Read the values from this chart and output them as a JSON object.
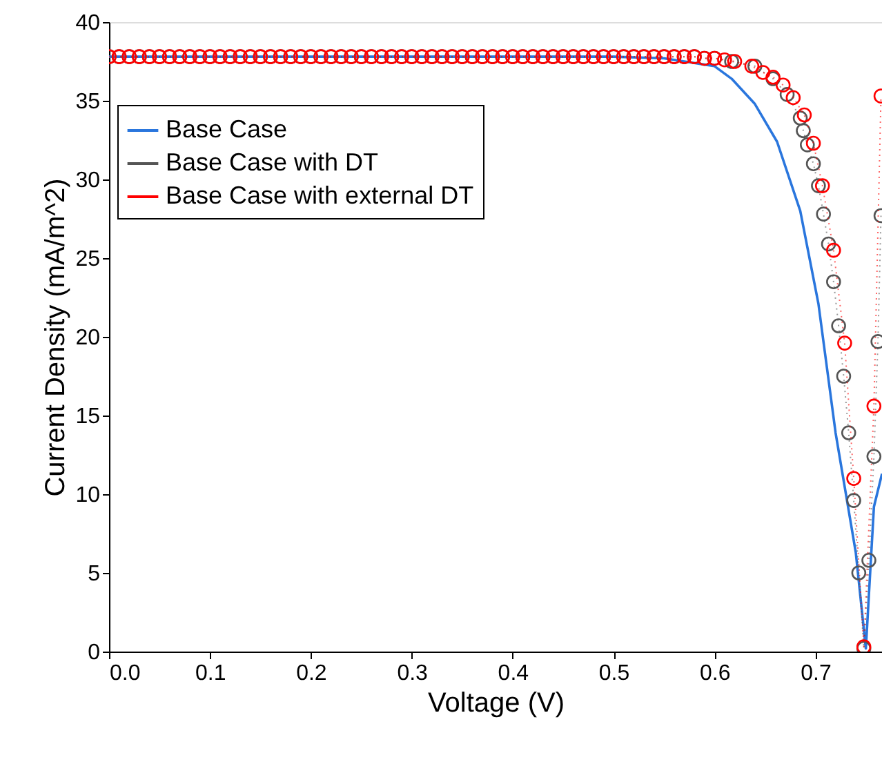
{
  "chart_data": {
    "type": "line",
    "xlabel": "Voltage (V)",
    "ylabel": "Current Density (mA/m^2)",
    "xlim": [
      0,
      0.766
    ],
    "ylim": [
      0,
      40
    ],
    "xticks": [
      {
        "value": 0,
        "label": "0.0"
      },
      0.1,
      0.2,
      0.3,
      0.4,
      0.5,
      0.6,
      0.7
    ],
    "yticks": [
      0,
      5,
      10,
      15,
      20,
      25,
      30,
      35,
      40
    ],
    "grid": false,
    "legend": "top left",
    "series": [
      {
        "name": "Base Case",
        "color": "#2a76dd",
        "marker": "none",
        "line_style": "solid",
        "x": [
          0,
          0.5,
          0.55,
          0.58,
          0.6,
          0.617,
          0.64,
          0.662,
          0.685,
          0.703,
          0.72,
          0.74,
          0.75,
          0.758,
          0.766
        ],
        "values": [
          37.8,
          37.8,
          37.7,
          37.4,
          37.2,
          36.4,
          34.8,
          32.4,
          28.0,
          22.1,
          13.9,
          6.3,
          0.2,
          9.2,
          11.3
        ]
      },
      {
        "name": "Base Case with DT",
        "color": "#555555",
        "marker": "circle",
        "line_style": "dotted",
        "x": [
          0,
          0.01,
          0.02,
          0.03,
          0.04,
          0.05,
          0.06,
          0.07,
          0.08,
          0.09,
          0.1,
          0.11,
          0.12,
          0.13,
          0.14,
          0.15,
          0.16,
          0.17,
          0.18,
          0.19,
          0.2,
          0.21,
          0.22,
          0.23,
          0.24,
          0.25,
          0.26,
          0.27,
          0.28,
          0.29,
          0.3,
          0.31,
          0.32,
          0.33,
          0.34,
          0.35,
          0.36,
          0.37,
          0.38,
          0.39,
          0.4,
          0.41,
          0.42,
          0.43,
          0.44,
          0.45,
          0.46,
          0.47,
          0.48,
          0.49,
          0.5,
          0.51,
          0.52,
          0.53,
          0.54,
          0.55,
          0.56,
          0.57,
          0.58,
          0.59,
          0.6,
          0.617,
          0.64,
          0.658,
          0.672,
          0.685,
          0.688,
          0.692,
          0.698,
          0.703,
          0.708,
          0.713,
          0.718,
          0.723,
          0.728,
          0.733,
          0.738,
          0.743,
          0.748,
          0.753,
          0.758,
          0.762,
          0.765
        ],
        "values": [
          37.8,
          37.8,
          37.8,
          37.8,
          37.8,
          37.8,
          37.8,
          37.8,
          37.8,
          37.8,
          37.8,
          37.8,
          37.8,
          37.8,
          37.8,
          37.8,
          37.8,
          37.8,
          37.8,
          37.8,
          37.8,
          37.8,
          37.8,
          37.8,
          37.8,
          37.8,
          37.8,
          37.8,
          37.8,
          37.8,
          37.8,
          37.8,
          37.8,
          37.8,
          37.8,
          37.8,
          37.8,
          37.8,
          37.8,
          37.8,
          37.8,
          37.8,
          37.8,
          37.8,
          37.8,
          37.8,
          37.8,
          37.8,
          37.8,
          37.8,
          37.8,
          37.8,
          37.8,
          37.8,
          37.8,
          37.8,
          37.8,
          37.8,
          37.8,
          37.7,
          37.7,
          37.5,
          37.2,
          36.4,
          35.4,
          33.9,
          33.1,
          32.2,
          31.0,
          29.6,
          27.8,
          25.9,
          23.5,
          20.7,
          17.5,
          13.9,
          9.6,
          5.0,
          0.2,
          5.8,
          12.4,
          19.7,
          27.7
        ]
      },
      {
        "name": "Base Case with external DT",
        "color": "#ff0000",
        "marker": "circle",
        "line_style": "dotted",
        "x": [
          0,
          0.01,
          0.02,
          0.03,
          0.04,
          0.05,
          0.06,
          0.07,
          0.08,
          0.09,
          0.1,
          0.11,
          0.12,
          0.13,
          0.14,
          0.15,
          0.16,
          0.17,
          0.18,
          0.19,
          0.2,
          0.21,
          0.22,
          0.23,
          0.24,
          0.25,
          0.26,
          0.27,
          0.28,
          0.29,
          0.3,
          0.31,
          0.32,
          0.33,
          0.34,
          0.35,
          0.36,
          0.37,
          0.38,
          0.39,
          0.4,
          0.41,
          0.42,
          0.43,
          0.44,
          0.45,
          0.46,
          0.47,
          0.48,
          0.49,
          0.5,
          0.51,
          0.52,
          0.53,
          0.54,
          0.55,
          0.56,
          0.57,
          0.58,
          0.59,
          0.6,
          0.61,
          0.62,
          0.637,
          0.648,
          0.658,
          0.668,
          0.678,
          0.689,
          0.698,
          0.707,
          0.718,
          0.729,
          0.738,
          0.748,
          0.758,
          0.765
        ],
        "values": [
          37.8,
          37.8,
          37.8,
          37.8,
          37.8,
          37.8,
          37.8,
          37.8,
          37.8,
          37.8,
          37.8,
          37.8,
          37.8,
          37.8,
          37.8,
          37.8,
          37.8,
          37.8,
          37.8,
          37.8,
          37.8,
          37.8,
          37.8,
          37.8,
          37.8,
          37.8,
          37.8,
          37.8,
          37.8,
          37.8,
          37.8,
          37.8,
          37.8,
          37.8,
          37.8,
          37.8,
          37.8,
          37.8,
          37.8,
          37.8,
          37.8,
          37.8,
          37.8,
          37.8,
          37.8,
          37.8,
          37.8,
          37.8,
          37.8,
          37.8,
          37.8,
          37.8,
          37.8,
          37.8,
          37.8,
          37.8,
          37.8,
          37.8,
          37.8,
          37.7,
          37.7,
          37.6,
          37.5,
          37.2,
          36.8,
          36.5,
          36.0,
          35.2,
          34.1,
          32.3,
          29.6,
          25.5,
          19.6,
          11.0,
          0.3,
          15.6,
          35.3
        ]
      }
    ]
  }
}
